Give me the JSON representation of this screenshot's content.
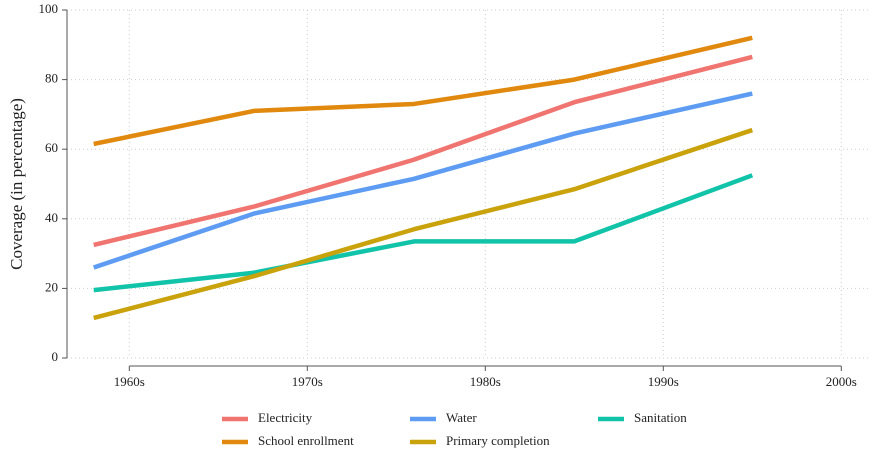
{
  "chart_data": {
    "type": "line",
    "y_label": "Coverage (in percentage)",
    "x": [
      1958,
      1967,
      1976,
      1985,
      1995
    ],
    "series": [
      {
        "name": "Electricity",
        "color": "#f07470",
        "values": [
          32.5,
          43.5,
          57,
          73.5,
          86.5
        ]
      },
      {
        "name": "Water",
        "color": "#5d9cf2",
        "values": [
          26,
          41.5,
          51.5,
          64.5,
          76
        ]
      },
      {
        "name": "Sanitation",
        "color": "#11c3a8",
        "values": [
          19.5,
          24.5,
          33.5,
          33.5,
          52.5
        ]
      },
      {
        "name": "School enrollment",
        "color": "#e0890e",
        "values": [
          61.5,
          71,
          73,
          80,
          92
        ]
      },
      {
        "name": "Primary completion",
        "color": "#c9a20c",
        "values": [
          11.5,
          23.5,
          37,
          48.5,
          65.5
        ]
      }
    ],
    "xlim": [
      1956.5,
      2001.5
    ],
    "xticks": [
      {
        "value": 1960,
        "label": "1960s"
      },
      {
        "value": 1970,
        "label": "1970s"
      },
      {
        "value": 1980,
        "label": "1980s"
      },
      {
        "value": 1990,
        "label": "1990s"
      },
      {
        "value": 2000,
        "label": "2000s"
      }
    ],
    "ylim": [
      0,
      100
    ],
    "yticks": [
      0,
      20,
      40,
      60,
      80,
      100
    ],
    "grid": true,
    "legend": "bottom"
  }
}
